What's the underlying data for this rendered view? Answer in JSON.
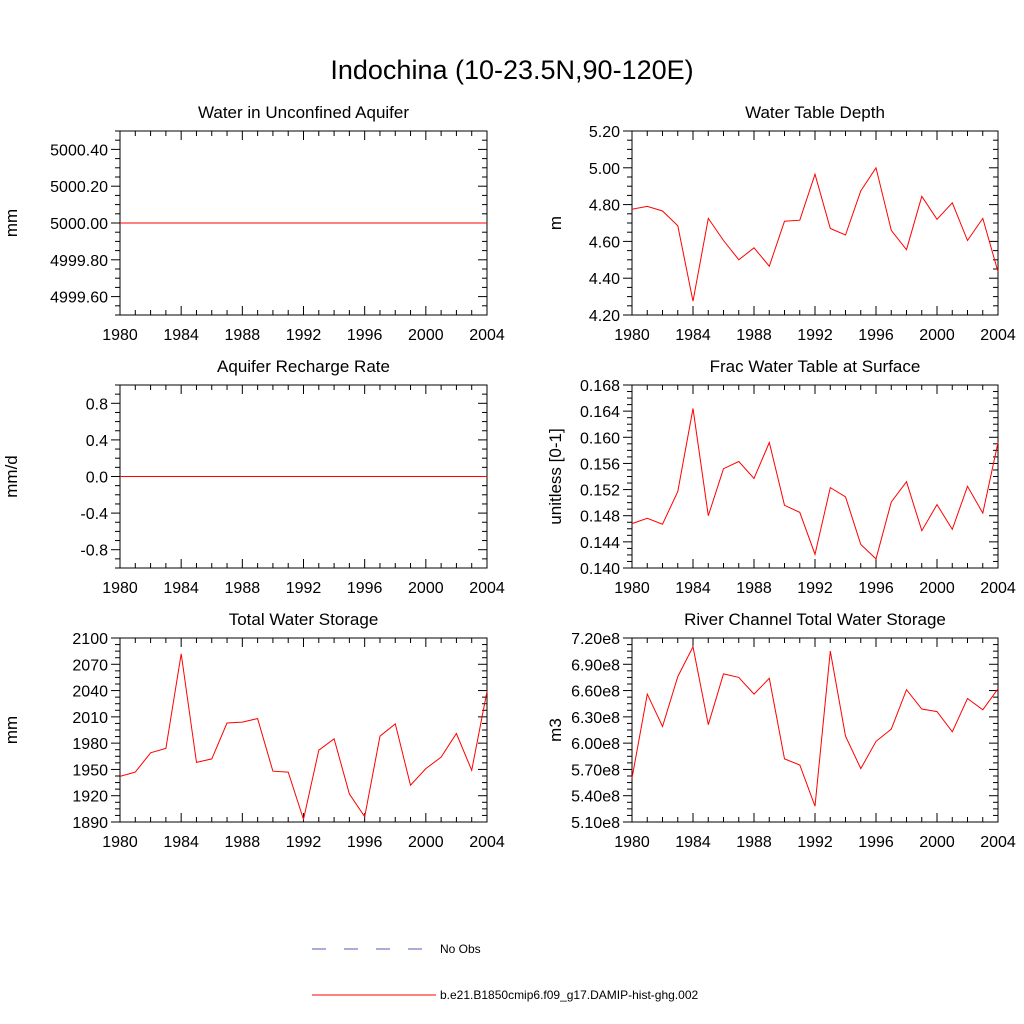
{
  "figure": {
    "title": "Indochina (10-23.5N,90-120E)"
  },
  "legend": [
    {
      "label": "No Obs",
      "color": "#4f5fb0",
      "dash": "dashed"
    },
    {
      "label": "b.e21.B1850cmip6.f09_g17.DAMIP-hist-ghg.002",
      "color": "#ff0000",
      "dash": "solid"
    }
  ],
  "chart_data": [
    {
      "type": "line",
      "title": "Water in Unconfined Aquifer",
      "ylabel": "mm",
      "xlim": [
        1980,
        2004
      ],
      "ylim": [
        4999.5,
        5000.5
      ],
      "xticks": [
        1980,
        1984,
        1988,
        1992,
        1996,
        2000,
        2004
      ],
      "yticks": [
        4999.6,
        4999.8,
        5000.0,
        5000.2,
        5000.4
      ],
      "ytick_labels": [
        "4999.60",
        "4999.80",
        "5000.00",
        "5000.20",
        "5000.40"
      ],
      "x": [
        1980,
        1981,
        1982,
        1983,
        1984,
        1985,
        1986,
        1987,
        1988,
        1989,
        1990,
        1991,
        1992,
        1993,
        1994,
        1995,
        1996,
        1997,
        1998,
        1999,
        2000,
        2001,
        2002,
        2003,
        2004
      ],
      "series": [
        {
          "color": "#ff0000",
          "values": [
            5000,
            5000,
            5000,
            5000,
            5000,
            5000,
            5000,
            5000,
            5000,
            5000,
            5000,
            5000,
            5000,
            5000,
            5000,
            5000,
            5000,
            5000,
            5000,
            5000,
            5000,
            5000,
            5000,
            5000,
            5000
          ]
        }
      ]
    },
    {
      "type": "line",
      "title": "Water Table Depth",
      "ylabel": "m",
      "xlim": [
        1980,
        2004
      ],
      "ylim": [
        4.2,
        5.2
      ],
      "xticks": [
        1980,
        1984,
        1988,
        1992,
        1996,
        2000,
        2004
      ],
      "yticks": [
        4.2,
        4.4,
        4.6,
        4.8,
        5.0,
        5.2
      ],
      "ytick_labels": [
        "4.20",
        "4.40",
        "4.60",
        "4.80",
        "5.00",
        "5.20"
      ],
      "x": [
        1980,
        1981,
        1982,
        1983,
        1984,
        1985,
        1986,
        1987,
        1988,
        1989,
        1990,
        1991,
        1992,
        1993,
        1994,
        1995,
        1996,
        1997,
        1998,
        1999,
        2000,
        2001,
        2002,
        2003,
        2004
      ],
      "series": [
        {
          "color": "#ff0000",
          "values": [
            4.775,
            4.79,
            4.765,
            4.685,
            4.275,
            4.725,
            4.605,
            4.5,
            4.565,
            4.465,
            4.71,
            4.715,
            4.965,
            4.67,
            4.635,
            4.875,
            5.0,
            4.66,
            4.555,
            4.845,
            4.72,
            4.81,
            4.605,
            4.725,
            4.435
          ]
        }
      ]
    },
    {
      "type": "line",
      "title": "Aquifer Recharge Rate",
      "ylabel": "mm/d",
      "xlim": [
        1980,
        2004
      ],
      "ylim": [
        -1.0,
        1.0
      ],
      "xticks": [
        1980,
        1984,
        1988,
        1992,
        1996,
        2000,
        2004
      ],
      "yticks": [
        -0.8,
        -0.4,
        0.0,
        0.4,
        0.8
      ],
      "ytick_labels": [
        "-0.8",
        "-0.4",
        "0.0",
        "0.4",
        "0.8"
      ],
      "x": [
        1980,
        1981,
        1982,
        1983,
        1984,
        1985,
        1986,
        1987,
        1988,
        1989,
        1990,
        1991,
        1992,
        1993,
        1994,
        1995,
        1996,
        1997,
        1998,
        1999,
        2000,
        2001,
        2002,
        2003,
        2004
      ],
      "series": [
        {
          "color": "#ff0000",
          "values": [
            0,
            0,
            0,
            0,
            0,
            0,
            0,
            0,
            0,
            0,
            0,
            0,
            0,
            0,
            0,
            0,
            0,
            0,
            0,
            0,
            0,
            0,
            0,
            0,
            0
          ]
        }
      ]
    },
    {
      "type": "line",
      "title": "Frac Water Table at Surface",
      "ylabel": "unitless [0-1]",
      "xlim": [
        1980,
        2004
      ],
      "ylim": [
        0.14,
        0.168
      ],
      "xticks": [
        1980,
        1984,
        1988,
        1992,
        1996,
        2000,
        2004
      ],
      "yticks": [
        0.14,
        0.144,
        0.148,
        0.152,
        0.156,
        0.16,
        0.164,
        0.168
      ],
      "ytick_labels": [
        "0.140",
        "0.144",
        "0.148",
        "0.152",
        "0.156",
        "0.160",
        "0.164",
        "0.168"
      ],
      "x": [
        1980,
        1981,
        1982,
        1983,
        1984,
        1985,
        1986,
        1987,
        1988,
        1989,
        1990,
        1991,
        1992,
        1993,
        1994,
        1995,
        1996,
        1997,
        1998,
        1999,
        2000,
        2001,
        2002,
        2003,
        2004
      ],
      "series": [
        {
          "color": "#ff0000",
          "values": [
            0.1468,
            0.1476,
            0.1467,
            0.1517,
            0.1644,
            0.148,
            0.1552,
            0.1563,
            0.1537,
            0.1592,
            0.1496,
            0.1485,
            0.1421,
            0.1523,
            0.1509,
            0.1436,
            0.1414,
            0.1501,
            0.1532,
            0.1457,
            0.1497,
            0.1459,
            0.1525,
            0.1484,
            0.1592
          ]
        }
      ]
    },
    {
      "type": "line",
      "title": "Total Water Storage",
      "ylabel": "mm",
      "xlim": [
        1980,
        2004
      ],
      "ylim": [
        1890,
        2100
      ],
      "xticks": [
        1980,
        1984,
        1988,
        1992,
        1996,
        2000,
        2004
      ],
      "yticks": [
        1890,
        1920,
        1950,
        1980,
        2010,
        2040,
        2070,
        2100
      ],
      "ytick_labels": [
        "1890",
        "1920",
        "1950",
        "1980",
        "2010",
        "2040",
        "2070",
        "2100"
      ],
      "x": [
        1980,
        1981,
        1982,
        1983,
        1984,
        1985,
        1986,
        1987,
        1988,
        1989,
        1990,
        1991,
        1992,
        1993,
        1994,
        1995,
        1996,
        1997,
        1998,
        1999,
        2000,
        2001,
        2002,
        2003,
        2004
      ],
      "series": [
        {
          "color": "#ff0000",
          "values": [
            1942,
            1947,
            1969,
            1974,
            2082,
            1958,
            1962,
            2003,
            2004,
            2008,
            1948,
            1947,
            1893,
            1972,
            1985,
            1922,
            1896,
            1988,
            2002,
            1932,
            1951,
            1964,
            1991,
            1949,
            2039
          ]
        }
      ]
    },
    {
      "type": "line",
      "title": "River Channel Total Water Storage",
      "ylabel": "m3",
      "xlim": [
        1980,
        2004
      ],
      "ylim": [
        510000000,
        720000000
      ],
      "xticks": [
        1980,
        1984,
        1988,
        1992,
        1996,
        2000,
        2004
      ],
      "yticks": [
        510000000,
        540000000,
        570000000,
        600000000,
        630000000,
        660000000,
        690000000,
        720000000
      ],
      "ytick_labels": [
        "5.10e8",
        "5.40e8",
        "5.70e8",
        "6.00e8",
        "6.30e8",
        "6.60e8",
        "6.90e8",
        "7.20e8"
      ],
      "x": [
        1980,
        1981,
        1982,
        1983,
        1984,
        1985,
        1986,
        1987,
        1988,
        1989,
        1990,
        1991,
        1992,
        1993,
        1994,
        1995,
        1996,
        1997,
        1998,
        1999,
        2000,
        2001,
        2002,
        2003,
        2004
      ],
      "series": [
        {
          "color": "#ff0000",
          "values": [
            560000000,
            656000000,
            619000000,
            676000000,
            710000000,
            621000000,
            679000000,
            675000000,
            656000000,
            674000000,
            582000000,
            575000000,
            528000000,
            705000000,
            608000000,
            571000000,
            602000000,
            616000000,
            661000000,
            639000000,
            636000000,
            613000000,
            651000000,
            638000000,
            662000000
          ]
        }
      ]
    }
  ]
}
